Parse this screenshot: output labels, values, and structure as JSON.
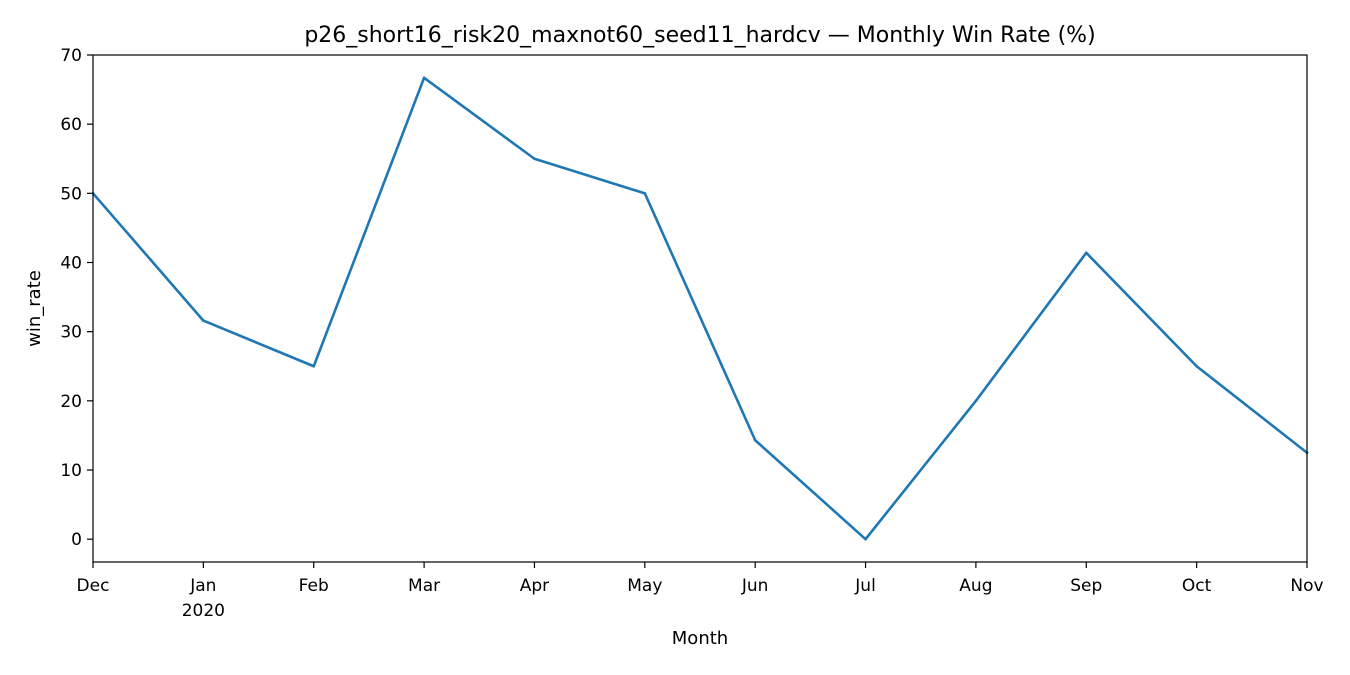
{
  "chart_data": {
    "type": "line",
    "title": "p26_short16_risk20_maxnot60_seed11_hardcv — Monthly Win Rate (%)",
    "xlabel": "Month",
    "ylabel": "win_rate",
    "ylim": [
      -3.3,
      70
    ],
    "yticks": [
      0,
      10,
      20,
      30,
      40,
      50,
      60,
      70
    ],
    "x_tick_labels": [
      {
        "label": "Dec",
        "sub": ""
      },
      {
        "label": "Jan",
        "sub": "2020"
      },
      {
        "label": "Feb",
        "sub": ""
      },
      {
        "label": "Mar",
        "sub": ""
      },
      {
        "label": "Apr",
        "sub": ""
      },
      {
        "label": "May",
        "sub": ""
      },
      {
        "label": "Jun",
        "sub": ""
      },
      {
        "label": "Jul",
        "sub": ""
      },
      {
        "label": "Aug",
        "sub": ""
      },
      {
        "label": "Sep",
        "sub": ""
      },
      {
        "label": "Oct",
        "sub": ""
      },
      {
        "label": "Nov",
        "sub": ""
      }
    ],
    "x": [
      "2019-12",
      "2020-01",
      "2020-02",
      "2020-03",
      "2020-04",
      "2020-05",
      "2020-06",
      "2020-07",
      "2020-08",
      "2020-09",
      "2020-10",
      "2020-11"
    ],
    "series": [
      {
        "color": "#1f77b4",
        "values": [
          50.0,
          31.6,
          25.0,
          66.7,
          55.0,
          50.0,
          14.3,
          0.0,
          20.0,
          41.4,
          25.0,
          12.5
        ]
      }
    ],
    "grid": false,
    "legend": "none"
  }
}
